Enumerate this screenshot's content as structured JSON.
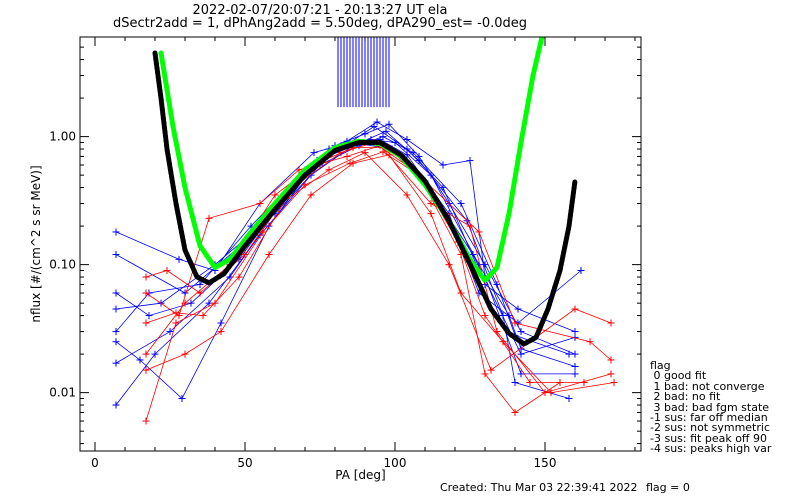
{
  "header": {
    "title_line1": "2022-02-07/20:07:21 - 20:13:27 UT ela",
    "title_line2": "dSectr2add = 1, dPhAng2add = 5.50deg, dPA290_est=  -0.0deg"
  },
  "footer": {
    "created": "Created: Thu Mar 03 22:39:41 2022",
    "flag": "flag = 0"
  },
  "legend": {
    "title": "flag",
    "items": [
      " 0 good fit",
      " 1 bad: not converge",
      " 2 bad: no fit",
      " 3 bad: bad fgm state",
      "-1 sus: far off median",
      "-2 sus: not symmetric",
      "-3 sus: fit peak off 90",
      "-4 sus: peaks high var"
    ]
  },
  "colors": {
    "blue": "#0000ff",
    "red": "#ff0000",
    "green": "#00ff00",
    "black": "#000000"
  },
  "chart_data": {
    "type": "line",
    "xlabel": "PA [deg]",
    "ylabel": "nflux [#/(cm^2 s sr MeV)]",
    "xlim": [
      -5,
      182
    ],
    "ylim": [
      0.0035,
      6.0
    ],
    "yscale": "log",
    "x_ticks": [
      0,
      50,
      100,
      150
    ],
    "x_tick_labels": [
      "0",
      "50",
      "100",
      "150"
    ],
    "y_ticks": [
      0.01,
      0.1,
      1.0
    ],
    "y_tick_labels": [
      "0.01",
      "0.10",
      "1.00"
    ],
    "fit_curves": [
      {
        "color": "green",
        "points": [
          [
            22,
            4.5
          ],
          [
            26,
            1.2
          ],
          [
            30,
            0.4
          ],
          [
            35,
            0.14
          ],
          [
            40,
            0.095
          ],
          [
            45,
            0.11
          ],
          [
            52,
            0.18
          ],
          [
            60,
            0.3
          ],
          [
            70,
            0.55
          ],
          [
            80,
            0.82
          ],
          [
            88,
            0.92
          ],
          [
            95,
            0.88
          ],
          [
            102,
            0.7
          ],
          [
            110,
            0.42
          ],
          [
            118,
            0.22
          ],
          [
            125,
            0.11
          ],
          [
            130,
            0.075
          ],
          [
            134,
            0.095
          ],
          [
            138,
            0.25
          ],
          [
            142,
            0.9
          ],
          [
            146,
            3.0
          ],
          [
            149,
            6.0
          ]
        ]
      },
      {
        "color": "black",
        "points": [
          [
            20,
            4.5
          ],
          [
            22,
            2.0
          ],
          [
            24,
            0.8
          ],
          [
            27,
            0.3
          ],
          [
            30,
            0.13
          ],
          [
            34,
            0.08
          ],
          [
            38,
            0.072
          ],
          [
            43,
            0.085
          ],
          [
            50,
            0.14
          ],
          [
            60,
            0.27
          ],
          [
            70,
            0.5
          ],
          [
            80,
            0.78
          ],
          [
            88,
            0.9
          ],
          [
            95,
            0.9
          ],
          [
            102,
            0.72
          ],
          [
            110,
            0.45
          ],
          [
            118,
            0.22
          ],
          [
            126,
            0.09
          ],
          [
            132,
            0.045
          ],
          [
            138,
            0.029
          ],
          [
            143,
            0.024
          ],
          [
            147,
            0.027
          ],
          [
            151,
            0.045
          ],
          [
            155,
            0.09
          ],
          [
            158,
            0.2
          ],
          [
            160,
            0.45
          ]
        ]
      }
    ],
    "error_bars": {
      "color": "blue",
      "x": [
        81,
        82,
        83,
        84,
        85,
        86,
        87,
        88,
        89,
        90,
        91,
        92,
        93,
        94,
        95,
        96,
        97,
        98
      ],
      "top": 6.0,
      "bottom": 1.7
    },
    "series_blue": [
      [
        [
          7,
          0.18
        ],
        [
          28,
          0.11
        ],
        [
          40,
          0.09
        ],
        [
          55,
          0.3
        ],
        [
          73,
          0.75
        ],
        [
          85,
          0.9
        ],
        [
          93,
          1.2
        ],
        [
          104,
          0.8
        ],
        [
          116,
          0.4
        ],
        [
          130,
          0.07
        ],
        [
          141,
          0.045
        ],
        [
          160,
          0.03
        ]
      ],
      [
        [
          7,
          0.12
        ],
        [
          30,
          0.06
        ],
        [
          50,
          0.15
        ],
        [
          68,
          0.45
        ],
        [
          80,
          0.85
        ],
        [
          90,
          1.05
        ],
        [
          98,
          1.25
        ],
        [
          108,
          0.7
        ],
        [
          118,
          0.3
        ],
        [
          130,
          0.1
        ],
        [
          142,
          0.03
        ],
        [
          160,
          0.02
        ]
      ],
      [
        [
          7,
          0.045
        ],
        [
          22,
          0.05
        ],
        [
          40,
          0.1
        ],
        [
          60,
          0.25
        ],
        [
          75,
          0.6
        ],
        [
          88,
          0.85
        ],
        [
          96,
          1.0
        ],
        [
          106,
          0.75
        ],
        [
          122,
          0.3
        ],
        [
          134,
          0.07
        ],
        [
          140,
          0.028
        ],
        [
          158,
          0.02
        ]
      ],
      [
        [
          7,
          0.03
        ],
        [
          18,
          0.06
        ],
        [
          35,
          0.07
        ],
        [
          52,
          0.2
        ],
        [
          70,
          0.55
        ],
        [
          84,
          0.92
        ],
        [
          94,
          1.3
        ],
        [
          104,
          0.95
        ],
        [
          116,
          0.6
        ],
        [
          125,
          0.65
        ],
        [
          130,
          0.08
        ],
        [
          142,
          0.014
        ],
        [
          160,
          0.014
        ]
      ],
      [
        [
          7,
          0.017
        ],
        [
          25,
          0.03
        ],
        [
          45,
          0.08
        ],
        [
          62,
          0.3
        ],
        [
          78,
          0.8
        ],
        [
          92,
          0.95
        ],
        [
          100,
          0.9
        ],
        [
          112,
          0.5
        ],
        [
          128,
          0.1
        ],
        [
          138,
          0.04
        ],
        [
          142,
          0.022
        ],
        [
          160,
          0.016
        ]
      ],
      [
        [
          7,
          0.008
        ],
        [
          20,
          0.02
        ],
        [
          38,
          0.05
        ],
        [
          55,
          0.17
        ],
        [
          72,
          0.5
        ],
        [
          86,
          0.85
        ],
        [
          97,
          1.1
        ],
        [
          108,
          0.65
        ],
        [
          124,
          0.22
        ],
        [
          136,
          0.04
        ],
        [
          140,
          0.012
        ],
        [
          158,
          0.009
        ]
      ],
      [
        [
          7,
          0.06
        ],
        [
          18,
          0.04
        ],
        [
          32,
          0.05
        ],
        [
          48,
          0.11
        ],
        [
          65,
          0.38
        ],
        [
          82,
          0.85
        ],
        [
          95,
          0.95
        ],
        [
          104,
          0.72
        ],
        [
          118,
          0.25
        ],
        [
          128,
          0.06
        ],
        [
          141,
          0.035
        ],
        [
          162,
          0.09
        ]
      ],
      [
        [
          7,
          0.025
        ],
        [
          15,
          0.018
        ],
        [
          29,
          0.009
        ],
        [
          42,
          0.035
        ],
        [
          58,
          0.2
        ],
        [
          74,
          0.65
        ],
        [
          88,
          0.88
        ],
        [
          99,
          0.8
        ],
        [
          110,
          0.45
        ],
        [
          126,
          0.12
        ],
        [
          142,
          0.02
        ],
        [
          160,
          0.027
        ]
      ]
    ],
    "series_red": [
      [
        [
          17,
          0.006
        ],
        [
          27,
          0.035
        ],
        [
          40,
          0.05
        ],
        [
          56,
          0.18
        ],
        [
          70,
          0.42
        ],
        [
          85,
          0.62
        ],
        [
          96,
          0.76
        ],
        [
          108,
          0.5
        ],
        [
          122,
          0.12
        ],
        [
          130,
          0.014
        ],
        [
          140,
          0.007
        ],
        [
          155,
          0.012
        ]
      ],
      [
        [
          17,
          0.02
        ],
        [
          30,
          0.05
        ],
        [
          45,
          0.1
        ],
        [
          60,
          0.35
        ],
        [
          74,
          0.62
        ],
        [
          86,
          0.82
        ],
        [
          98,
          0.82
        ],
        [
          110,
          0.42
        ],
        [
          121,
          0.15
        ],
        [
          130,
          0.04
        ],
        [
          145,
          0.012
        ],
        [
          163,
          0.012
        ]
      ],
      [
        [
          17,
          0.06
        ],
        [
          28,
          0.04
        ],
        [
          38,
          0.23
        ],
        [
          55,
          0.3
        ],
        [
          68,
          0.55
        ],
        [
          84,
          0.7
        ],
        [
          95,
          0.85
        ],
        [
          112,
          0.3
        ],
        [
          125,
          0.2
        ],
        [
          134,
          0.03
        ],
        [
          150,
          0.01
        ],
        [
          172,
          0.014
        ]
      ],
      [
        [
          17,
          0.08
        ],
        [
          24,
          0.09
        ],
        [
          35,
          0.06
        ],
        [
          50,
          0.12
        ],
        [
          62,
          0.3
        ],
        [
          78,
          0.55
        ],
        [
          90,
          0.75
        ],
        [
          104,
          0.35
        ],
        [
          118,
          0.1
        ],
        [
          132,
          0.015
        ],
        [
          160,
          0.045
        ],
        [
          172,
          0.035
        ]
      ],
      [
        [
          17,
          0.035
        ],
        [
          27,
          0.042
        ],
        [
          36,
          0.04
        ],
        [
          48,
          0.08
        ],
        [
          66,
          0.4
        ],
        [
          82,
          0.75
        ],
        [
          93,
          0.9
        ],
        [
          106,
          0.55
        ],
        [
          128,
          0.18
        ],
        [
          140,
          0.035
        ],
        [
          165,
          0.025
        ],
        [
          172,
          0.018
        ]
      ],
      [
        [
          17,
          0.015
        ],
        [
          30,
          0.02
        ],
        [
          42,
          0.03
        ],
        [
          58,
          0.12
        ],
        [
          72,
          0.35
        ],
        [
          86,
          0.62
        ],
        [
          98,
          0.72
        ],
        [
          112,
          0.25
        ],
        [
          122,
          0.06
        ],
        [
          136,
          0.025
        ],
        [
          152,
          0.01
        ],
        [
          173,
          0.012
        ]
      ]
    ]
  }
}
